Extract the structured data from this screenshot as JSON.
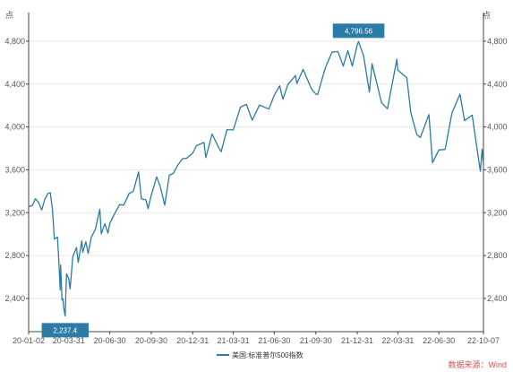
{
  "chart_data": {
    "type": "line",
    "unit_left": "点",
    "unit_right": "点",
    "y_ticks": [
      2400,
      2800,
      3200,
      3600,
      4000,
      4400,
      4800
    ],
    "y_tick_labels": [
      "2,400",
      "2,800",
      "3,200",
      "3,600",
      "4,000",
      "4,400",
      "4,800"
    ],
    "ylim": [
      2090,
      5000
    ],
    "x_start": "2020-01-02",
    "x_end": "2022-10-07",
    "x_ticks": [
      "2020-01-02",
      "2020-03-31",
      "2020-06-30",
      "2020-09-30",
      "2020-12-31",
      "2021-03-31",
      "2021-06-30",
      "2021-09-30",
      "2021-12-31",
      "2022-03-31",
      "2022-06-30",
      "2022-10-07"
    ],
    "x_tick_labels": [
      "20-01-02",
      "20-03-31",
      "20-06-30",
      "20-09-30",
      "20-12-31",
      "21-03-31",
      "21-06-30",
      "21-09-30",
      "21-12-31",
      "22-03-31",
      "22-06-30",
      "22-10-07"
    ],
    "grid": "horizontal",
    "legend_position": "bottom",
    "colors": {
      "series": "#2a7ba5",
      "callout": "#2a7ba5",
      "source": "#d9534f"
    },
    "series": [
      {
        "name": "美国:标准普尔500指数",
        "points": [
          [
            "2020-01-02",
            3258
          ],
          [
            "2020-01-10",
            3265
          ],
          [
            "2020-01-17",
            3330
          ],
          [
            "2020-01-24",
            3295
          ],
          [
            "2020-01-31",
            3225
          ],
          [
            "2020-02-07",
            3328
          ],
          [
            "2020-02-14",
            3380
          ],
          [
            "2020-02-19",
            3386
          ],
          [
            "2020-02-24",
            3225
          ],
          [
            "2020-02-28",
            2954
          ],
          [
            "2020-03-06",
            2972
          ],
          [
            "2020-03-09",
            2746
          ],
          [
            "2020-03-12",
            2480
          ],
          [
            "2020-03-13",
            2711
          ],
          [
            "2020-03-16",
            2386
          ],
          [
            "2020-03-18",
            2398
          ],
          [
            "2020-03-20",
            2304
          ],
          [
            "2020-03-23",
            2237.4
          ],
          [
            "2020-03-26",
            2630
          ],
          [
            "2020-03-31",
            2584
          ],
          [
            "2020-04-03",
            2488
          ],
          [
            "2020-04-09",
            2789
          ],
          [
            "2020-04-17",
            2874
          ],
          [
            "2020-04-21",
            2736
          ],
          [
            "2020-04-29",
            2939
          ],
          [
            "2020-05-01",
            2830
          ],
          [
            "2020-05-08",
            2929
          ],
          [
            "2020-05-13",
            2820
          ],
          [
            "2020-05-20",
            2971
          ],
          [
            "2020-05-29",
            3044
          ],
          [
            "2020-06-08",
            3232
          ],
          [
            "2020-06-11",
            3002
          ],
          [
            "2020-06-19",
            3097
          ],
          [
            "2020-06-26",
            3009
          ],
          [
            "2020-06-30",
            3100
          ],
          [
            "2020-07-10",
            3185
          ],
          [
            "2020-07-22",
            3276
          ],
          [
            "2020-07-31",
            3271
          ],
          [
            "2020-08-12",
            3380
          ],
          [
            "2020-08-21",
            3397
          ],
          [
            "2020-09-02",
            3580
          ],
          [
            "2020-09-08",
            3331
          ],
          [
            "2020-09-18",
            3319
          ],
          [
            "2020-09-23",
            3237
          ],
          [
            "2020-09-30",
            3363
          ],
          [
            "2020-10-12",
            3534
          ],
          [
            "2020-10-20",
            3443
          ],
          [
            "2020-10-30",
            3270
          ],
          [
            "2020-11-09",
            3550
          ],
          [
            "2020-11-18",
            3567
          ],
          [
            "2020-11-27",
            3638
          ],
          [
            "2020-12-08",
            3702
          ],
          [
            "2020-12-18",
            3709
          ],
          [
            "2020-12-31",
            3756
          ],
          [
            "2021-01-08",
            3824
          ],
          [
            "2021-01-25",
            3855
          ],
          [
            "2021-01-29",
            3714
          ],
          [
            "2021-02-12",
            3934
          ],
          [
            "2021-02-26",
            3811
          ],
          [
            "2021-03-04",
            3768
          ],
          [
            "2021-03-17",
            3974
          ],
          [
            "2021-03-31",
            3972
          ],
          [
            "2021-04-16",
            4185
          ],
          [
            "2021-04-29",
            4211
          ],
          [
            "2021-05-12",
            4063
          ],
          [
            "2021-05-28",
            4204
          ],
          [
            "2021-06-18",
            4166
          ],
          [
            "2021-06-30",
            4297
          ],
          [
            "2021-07-12",
            4384
          ],
          [
            "2021-07-19",
            4258
          ],
          [
            "2021-07-30",
            4395
          ],
          [
            "2021-08-16",
            4479
          ],
          [
            "2021-08-19",
            4405
          ],
          [
            "2021-09-02",
            4537
          ],
          [
            "2021-09-20",
            4358
          ],
          [
            "2021-09-30",
            4307
          ],
          [
            "2021-10-04",
            4300
          ],
          [
            "2021-10-21",
            4549
          ],
          [
            "2021-11-05",
            4697
          ],
          [
            "2021-11-18",
            4704
          ],
          [
            "2021-11-30",
            4567
          ],
          [
            "2021-12-10",
            4712
          ],
          [
            "2021-12-20",
            4568
          ],
          [
            "2021-12-31",
            4766
          ],
          [
            "2022-01-03",
            4796.56
          ],
          [
            "2022-01-14",
            4663
          ],
          [
            "2022-01-27",
            4326
          ],
          [
            "2022-02-02",
            4589
          ],
          [
            "2022-02-23",
            4225
          ],
          [
            "2022-03-08",
            4170
          ],
          [
            "2022-03-29",
            4632
          ],
          [
            "2022-03-31",
            4530
          ],
          [
            "2022-04-20",
            4459
          ],
          [
            "2022-04-29",
            4132
          ],
          [
            "2022-05-12",
            3930
          ],
          [
            "2022-05-20",
            3901
          ],
          [
            "2022-06-08",
            4115
          ],
          [
            "2022-06-16",
            3667
          ],
          [
            "2022-06-30",
            3785
          ],
          [
            "2022-07-14",
            3790
          ],
          [
            "2022-07-29",
            4130
          ],
          [
            "2022-08-16",
            4305
          ],
          [
            "2022-08-26",
            4058
          ],
          [
            "2022-09-12",
            4110
          ],
          [
            "2022-09-30",
            3586
          ],
          [
            "2022-10-04",
            3791
          ],
          [
            "2022-10-07",
            3640
          ]
        ]
      }
    ],
    "annotations": [
      {
        "date": "2020-03-23",
        "value": 2237.4,
        "label": "2,237.4"
      },
      {
        "date": "2022-01-03",
        "value": 4796.56,
        "label": "4,796.56"
      }
    ],
    "legend": [
      {
        "label": "美国:标准普尔500指数"
      }
    ]
  },
  "source": "数据来源：Wind"
}
